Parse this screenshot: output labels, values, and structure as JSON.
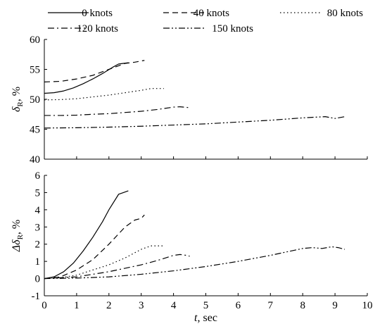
{
  "chart_data": [
    {
      "type": "line",
      "panel": "top",
      "ylabel": "δR, %",
      "ylabel_main": "δ",
      "ylabel_sub": "R",
      "ylabel_unit": ", %",
      "xlim": [
        0,
        10
      ],
      "ylim": [
        40,
        60
      ],
      "yticks": [
        40,
        45,
        50,
        55,
        60
      ],
      "grid": false,
      "series": [
        {
          "name": "0 knots",
          "style": "solid",
          "x": [
            0,
            0.3,
            0.6,
            0.9,
            1.2,
            1.5,
            1.8,
            2.1,
            2.3,
            2.45,
            2.6
          ],
          "y": [
            51.0,
            51.1,
            51.4,
            51.9,
            52.6,
            53.4,
            54.3,
            55.3,
            55.9,
            56.0,
            56.1
          ]
        },
        {
          "name": "40 knots",
          "style": "dash",
          "x": [
            0,
            0.5,
            1.0,
            1.5,
            2.0,
            2.5,
            2.8,
            3.1
          ],
          "y": [
            52.9,
            53.0,
            53.4,
            54.0,
            55.0,
            56.0,
            56.2,
            56.5
          ]
        },
        {
          "name": "80 knots",
          "style": "dot",
          "x": [
            0,
            0.5,
            1.0,
            1.5,
            2.0,
            2.5,
            3.0,
            3.3,
            3.7
          ],
          "y": [
            49.9,
            49.95,
            50.1,
            50.4,
            50.7,
            51.1,
            51.5,
            51.8,
            51.8
          ]
        },
        {
          "name": "120 knots",
          "style": "dashdot",
          "x": [
            0,
            0.5,
            1.0,
            1.5,
            2.0,
            2.5,
            3.0,
            3.5,
            4.0,
            4.2,
            4.5
          ],
          "y": [
            47.3,
            47.3,
            47.35,
            47.5,
            47.6,
            47.8,
            48.0,
            48.3,
            48.7,
            48.75,
            48.6
          ]
        },
        {
          "name": "150 knots",
          "style": "dashdotdot",
          "x": [
            0,
            1.0,
            2.0,
            3.0,
            4.0,
            5.0,
            6.0,
            7.0,
            8.0,
            8.7,
            9.0,
            9.3
          ],
          "y": [
            45.2,
            45.25,
            45.35,
            45.5,
            45.7,
            45.9,
            46.2,
            46.5,
            46.9,
            47.1,
            46.8,
            47.1
          ]
        }
      ]
    },
    {
      "type": "line",
      "panel": "bottom",
      "xlabel": "t, sec",
      "xlabel_main": "t",
      "xlabel_unit": ", sec",
      "ylabel": "ΔδR, %",
      "ylabel_main": "Δδ",
      "ylabel_sub": "R",
      "ylabel_unit": ", %",
      "xlim": [
        0,
        10
      ],
      "xticks": [
        0,
        1,
        2,
        3,
        4,
        5,
        6,
        7,
        8,
        9,
        10
      ],
      "ylim": [
        -1,
        6
      ],
      "yticks": [
        -1,
        0,
        1,
        2,
        3,
        4,
        5,
        6
      ],
      "grid": false,
      "series": [
        {
          "name": "0 knots",
          "style": "solid",
          "x": [
            0,
            0.3,
            0.6,
            0.9,
            1.2,
            1.5,
            1.8,
            2.0,
            2.3,
            2.45,
            2.6
          ],
          "y": [
            0,
            0.1,
            0.4,
            0.9,
            1.6,
            2.4,
            3.3,
            4.0,
            4.9,
            5.0,
            5.1
          ]
        },
        {
          "name": "40 knots",
          "style": "dash",
          "x": [
            0,
            0.5,
            1.0,
            1.5,
            2.0,
            2.5,
            2.8,
            3.0,
            3.1
          ],
          "y": [
            0,
            0.1,
            0.5,
            1.1,
            2.0,
            3.0,
            3.4,
            3.5,
            3.7
          ]
        },
        {
          "name": "80 knots",
          "style": "dot",
          "x": [
            0,
            0.5,
            1.0,
            1.5,
            2.0,
            2.5,
            3.0,
            3.3,
            3.5,
            3.7
          ],
          "y": [
            0,
            0.05,
            0.2,
            0.5,
            0.8,
            1.2,
            1.7,
            1.9,
            1.9,
            1.9
          ]
        },
        {
          "name": "120 knots",
          "style": "dashdot",
          "x": [
            0,
            0.5,
            1.0,
            1.5,
            2.0,
            2.5,
            3.0,
            3.5,
            4.0,
            4.2,
            4.4,
            4.5
          ],
          "y": [
            0,
            0.05,
            0.1,
            0.25,
            0.4,
            0.6,
            0.8,
            1.05,
            1.35,
            1.4,
            1.35,
            1.3
          ]
        },
        {
          "name": "150 knots",
          "style": "dashdotdot",
          "x": [
            0,
            1.0,
            2.0,
            3.0,
            4.0,
            5.0,
            6.0,
            7.0,
            7.5,
            8.0,
            8.3,
            8.6,
            8.9,
            9.1,
            9.3
          ],
          "y": [
            0,
            0.03,
            0.1,
            0.25,
            0.45,
            0.7,
            1.0,
            1.35,
            1.55,
            1.75,
            1.8,
            1.75,
            1.85,
            1.8,
            1.7
          ]
        }
      ]
    }
  ],
  "legend": {
    "placement": "top",
    "entries": [
      {
        "label": "0 knots",
        "style": "solid"
      },
      {
        "label": "40 knots",
        "style": "dash"
      },
      {
        "label": "80 knots",
        "style": "dot"
      },
      {
        "label": "120 knots",
        "style": "dashdot"
      },
      {
        "label": "150 knots",
        "style": "dashdotdot"
      }
    ]
  }
}
